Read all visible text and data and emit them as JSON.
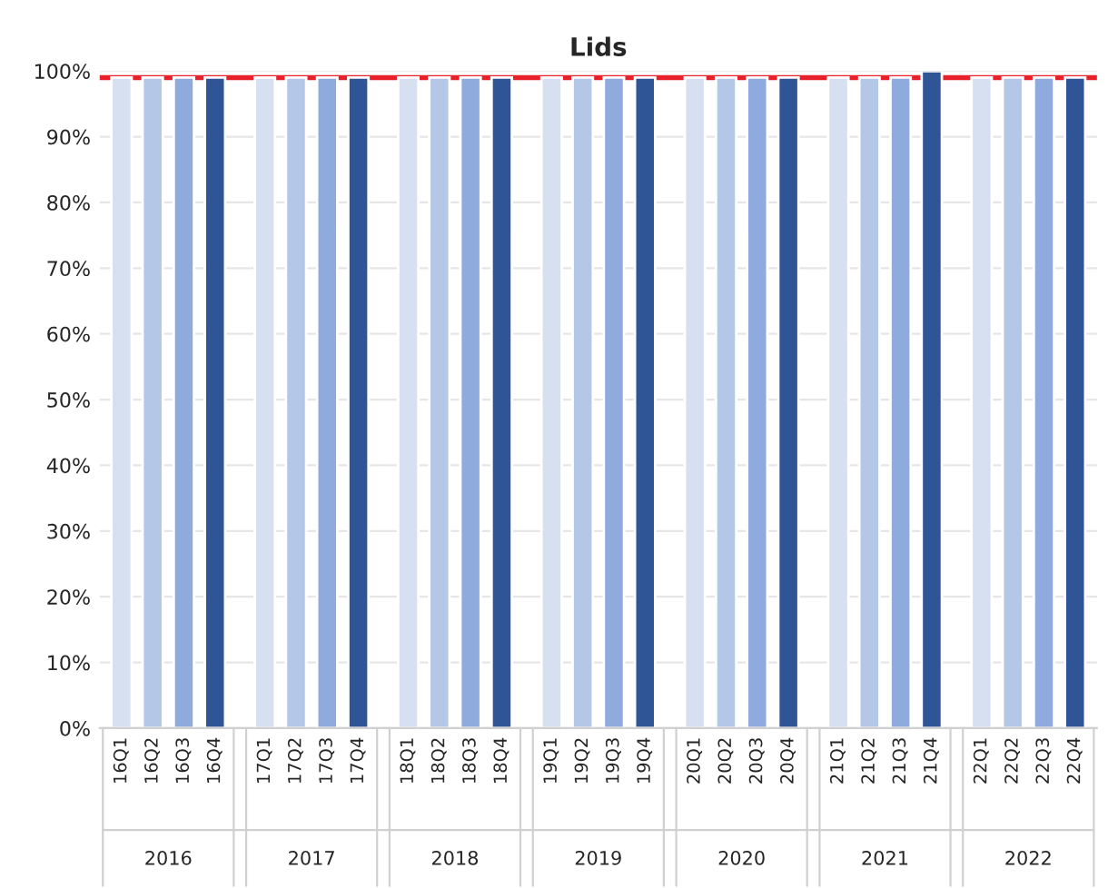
{
  "chart_data": {
    "type": "bar",
    "title": "Lids",
    "categories": [
      "16Q1",
      "16Q2",
      "16Q3",
      "16Q4",
      "17Q1",
      "17Q2",
      "17Q3",
      "17Q4",
      "18Q1",
      "18Q2",
      "18Q3",
      "18Q4",
      "19Q1",
      "19Q2",
      "19Q3",
      "19Q4",
      "20Q1",
      "20Q2",
      "20Q3",
      "20Q4",
      "21Q1",
      "21Q2",
      "21Q3",
      "21Q4",
      "22Q1",
      "22Q2",
      "22Q3",
      "22Q4"
    ],
    "values": [
      99,
      99,
      99,
      99,
      99,
      99,
      99,
      99,
      99,
      99,
      99,
      99,
      99,
      99,
      99,
      99,
      99,
      99,
      99,
      99,
      99,
      99,
      99,
      100,
      99,
      99,
      99,
      99
    ],
    "colors": [
      "#d6e0f0",
      "#b4c7e7",
      "#8faadc",
      "#2f5597",
      "#d6e0f0",
      "#b4c7e7",
      "#8faadc",
      "#2f5597",
      "#d6e0f0",
      "#b4c7e7",
      "#8faadc",
      "#2f5597",
      "#d6e0f0",
      "#b4c7e7",
      "#8faadc",
      "#2f5597",
      "#d6e0f0",
      "#b4c7e7",
      "#8faadc",
      "#2f5597",
      "#d6e0f0",
      "#b4c7e7",
      "#8faadc",
      "#2f5597",
      "#d6e0f0",
      "#b4c7e7",
      "#8faadc",
      "#2f5597"
    ],
    "annotations": [
      "2016",
      "2017",
      "2018",
      "2019",
      "2020",
      "2021",
      "2022"
    ],
    "ylim": [
      0,
      100
    ],
    "yticks": [
      {
        "value": 0,
        "label": "0%"
      },
      {
        "value": 10,
        "label": "10%"
      },
      {
        "value": 20,
        "label": "20%"
      },
      {
        "value": 30,
        "label": "30%"
      },
      {
        "value": 40,
        "label": "40%"
      },
      {
        "value": 50,
        "label": "50%"
      },
      {
        "value": 60,
        "label": "60%"
      },
      {
        "value": 70,
        "label": "70%"
      },
      {
        "value": 80,
        "label": "80%"
      },
      {
        "value": 90,
        "label": "90%"
      },
      {
        "value": 100,
        "label": "100%"
      }
    ],
    "ref_lines": [
      {
        "axis": "y",
        "value": 99,
        "color": "#e8202a"
      }
    ],
    "grid": "y"
  }
}
